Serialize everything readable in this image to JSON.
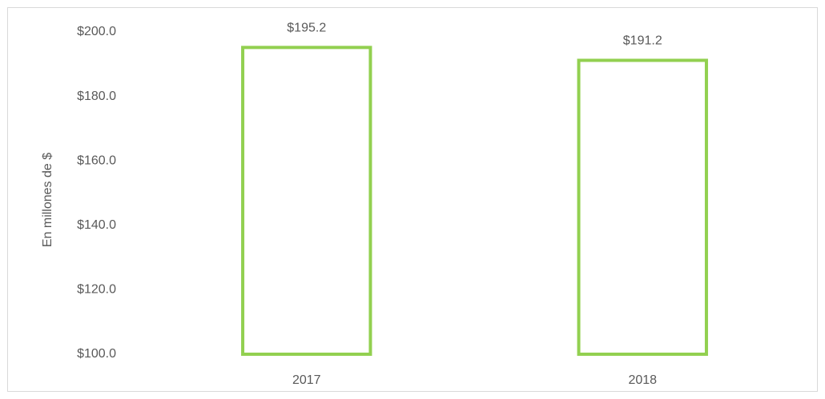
{
  "chart_data": {
    "type": "bar",
    "y_label": "En millones de $",
    "categories": [
      "2017",
      "2018"
    ],
    "values": [
      195.2,
      191.2
    ],
    "value_labels": [
      "$195.2",
      "$191.2"
    ],
    "color": "#92d050",
    "ylim": [
      100,
      200
    ],
    "yticks": [
      {
        "value": 100,
        "label": "$100.0"
      },
      {
        "value": 120,
        "label": "$120.0"
      },
      {
        "value": 140,
        "label": "$140.0"
      },
      {
        "value": 160,
        "label": "$160.0"
      },
      {
        "value": 180,
        "label": "$180.0"
      },
      {
        "value": 200,
        "label": "$200.0"
      }
    ],
    "grid": false
  }
}
